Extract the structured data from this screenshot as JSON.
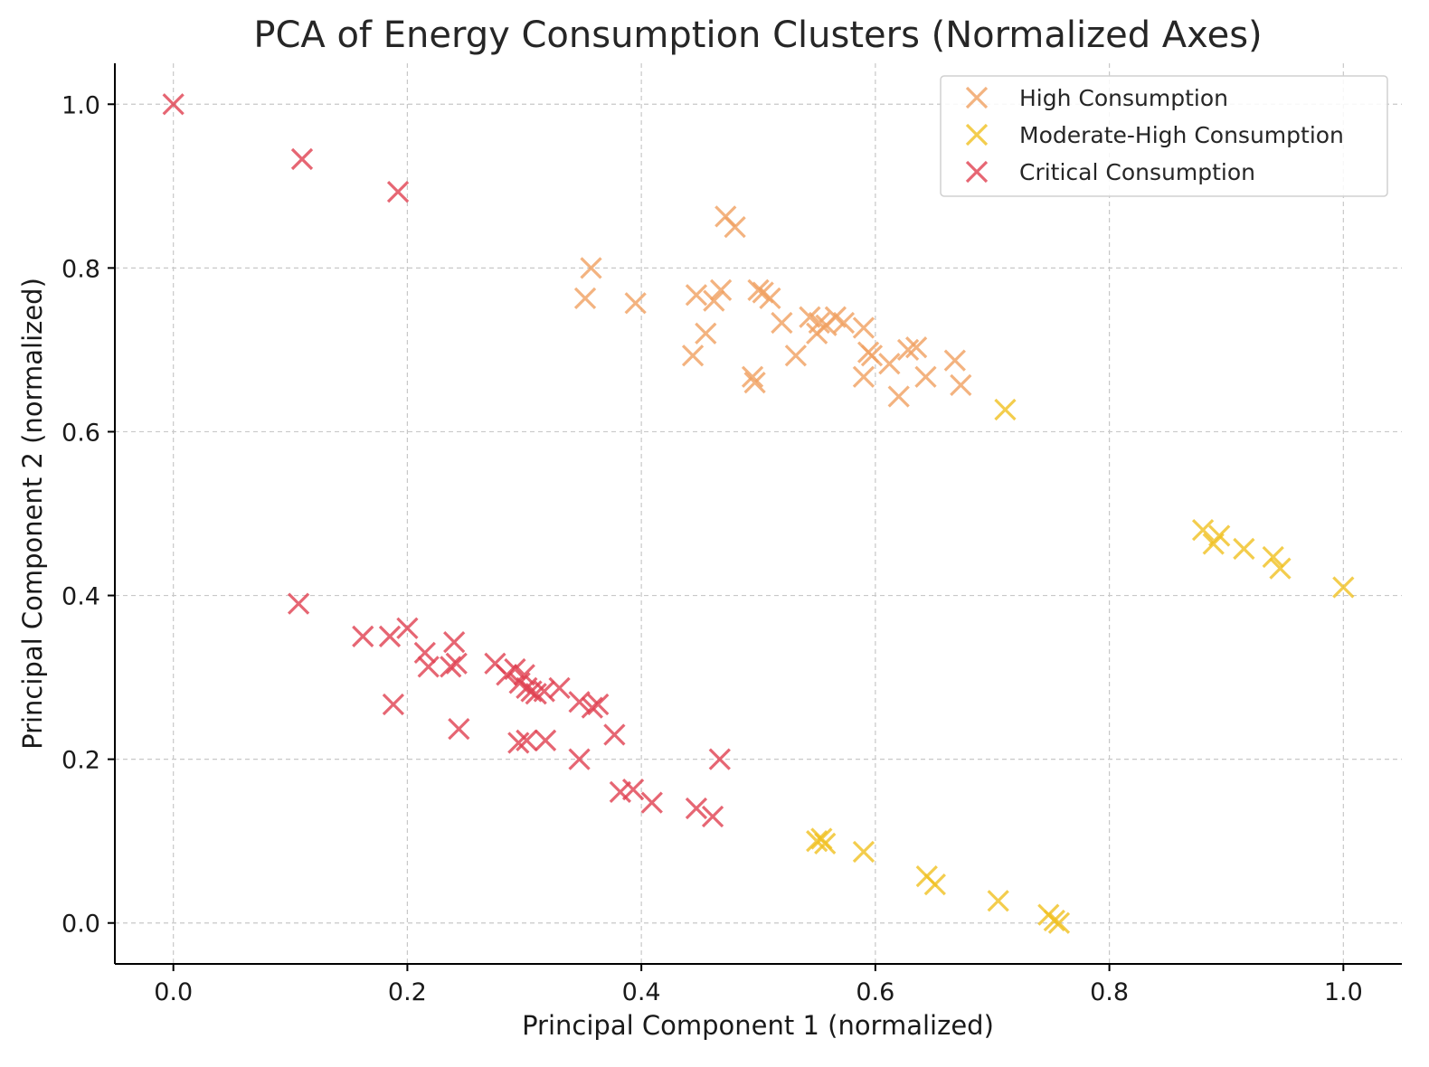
{
  "chart_data": {
    "type": "scatter",
    "title": "PCA of Energy Consumption Clusters (Normalized Axes)",
    "xlabel": "Principal Component 1 (normalized)",
    "ylabel": "Principal Component 2 (normalized)",
    "xlim": [
      -0.05,
      1.05
    ],
    "ylim": [
      -0.05,
      1.05
    ],
    "xticks": [
      "0.0",
      "0.2",
      "0.4",
      "0.6",
      "0.8",
      "1.0"
    ],
    "yticks": [
      "0.0",
      "0.2",
      "0.4",
      "0.6",
      "0.8",
      "1.0"
    ],
    "grid": true,
    "legend_position": "top-right",
    "marker": "x",
    "series": [
      {
        "name": "High Consumption",
        "color": "#f0a060",
        "points": [
          [
            0.352,
            0.763
          ],
          [
            0.357,
            0.8
          ],
          [
            0.395,
            0.757
          ],
          [
            0.444,
            0.693
          ],
          [
            0.447,
            0.767
          ],
          [
            0.455,
            0.72
          ],
          [
            0.462,
            0.76
          ],
          [
            0.468,
            0.773
          ],
          [
            0.472,
            0.863
          ],
          [
            0.48,
            0.85
          ],
          [
            0.495,
            0.667
          ],
          [
            0.497,
            0.66
          ],
          [
            0.5,
            0.773
          ],
          [
            0.504,
            0.77
          ],
          [
            0.51,
            0.763
          ],
          [
            0.52,
            0.733
          ],
          [
            0.532,
            0.693
          ],
          [
            0.544,
            0.74
          ],
          [
            0.55,
            0.72
          ],
          [
            0.552,
            0.733
          ],
          [
            0.558,
            0.73
          ],
          [
            0.566,
            0.74
          ],
          [
            0.573,
            0.733
          ],
          [
            0.59,
            0.727
          ],
          [
            0.59,
            0.667
          ],
          [
            0.594,
            0.697
          ],
          [
            0.597,
            0.693
          ],
          [
            0.612,
            0.683
          ],
          [
            0.62,
            0.643
          ],
          [
            0.628,
            0.7
          ],
          [
            0.635,
            0.703
          ],
          [
            0.643,
            0.667
          ],
          [
            0.668,
            0.687
          ],
          [
            0.673,
            0.657
          ]
        ]
      },
      {
        "name": "Moderate-High Consumption",
        "color": "#f0c020",
        "points": [
          [
            0.711,
            0.627
          ],
          [
            0.88,
            0.48
          ],
          [
            0.889,
            0.463
          ],
          [
            0.894,
            0.473
          ],
          [
            0.915,
            0.457
          ],
          [
            0.94,
            0.447
          ],
          [
            0.946,
            0.433
          ],
          [
            1.0,
            0.41
          ],
          [
            0.55,
            0.1
          ],
          [
            0.554,
            0.103
          ],
          [
            0.557,
            0.097
          ],
          [
            0.59,
            0.087
          ],
          [
            0.644,
            0.057
          ],
          [
            0.651,
            0.047
          ],
          [
            0.705,
            0.027
          ],
          [
            0.748,
            0.01
          ],
          [
            0.753,
            0.003
          ],
          [
            0.757,
            0.0
          ]
        ]
      },
      {
        "name": "Critical Consumption",
        "color": "#e04050",
        "points": [
          [
            0.0,
            1.0
          ],
          [
            0.11,
            0.933
          ],
          [
            0.192,
            0.893
          ],
          [
            0.107,
            0.39
          ],
          [
            0.162,
            0.35
          ],
          [
            0.185,
            0.35
          ],
          [
            0.188,
            0.267
          ],
          [
            0.2,
            0.36
          ],
          [
            0.215,
            0.33
          ],
          [
            0.218,
            0.313
          ],
          [
            0.237,
            0.313
          ],
          [
            0.24,
            0.343
          ],
          [
            0.242,
            0.317
          ],
          [
            0.244,
            0.237
          ],
          [
            0.275,
            0.317
          ],
          [
            0.285,
            0.303
          ],
          [
            0.292,
            0.31
          ],
          [
            0.296,
            0.293
          ],
          [
            0.3,
            0.303
          ],
          [
            0.302,
            0.287
          ],
          [
            0.306,
            0.283
          ],
          [
            0.31,
            0.28
          ],
          [
            0.317,
            0.283
          ],
          [
            0.33,
            0.287
          ],
          [
            0.295,
            0.22
          ],
          [
            0.302,
            0.223
          ],
          [
            0.318,
            0.223
          ],
          [
            0.347,
            0.27
          ],
          [
            0.347,
            0.2
          ],
          [
            0.358,
            0.263
          ],
          [
            0.363,
            0.267
          ],
          [
            0.377,
            0.23
          ],
          [
            0.382,
            0.16
          ],
          [
            0.393,
            0.163
          ],
          [
            0.409,
            0.147
          ],
          [
            0.447,
            0.14
          ],
          [
            0.461,
            0.13
          ],
          [
            0.467,
            0.2
          ]
        ]
      }
    ]
  }
}
